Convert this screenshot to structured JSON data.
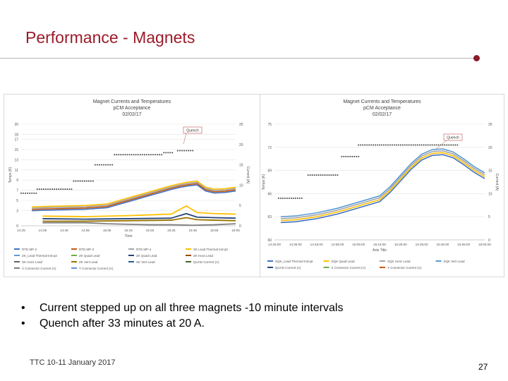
{
  "slide": {
    "title": "Performance - Magnets",
    "bullets": [
      "Current stepped up on all three magnets -10 minute intervals",
      "Quench after 33 minutes at 20 A."
    ],
    "footer": "TTC 10-11 January 2017",
    "page_number": "27",
    "colors": {
      "title": "#9b1b2a",
      "accent_dot": "#8b1a2a"
    }
  },
  "chart_data": [
    {
      "type": "line",
      "title": "Magnet Currents and Temperatures",
      "subtitle_lines": [
        "pCM Acceptance",
        "02/02/17"
      ],
      "xlabel": "Time",
      "ylabel": "Temps (K)",
      "y2label": "Current (A)",
      "x_categories": [
        "14:25",
        "14:35",
        "14:45",
        "14:55",
        "15:05",
        "15:15",
        "15:25",
        "15:35",
        "15:45",
        "15:55",
        "16:05"
      ],
      "ylim": [
        0,
        20
      ],
      "y_ticks": [
        0,
        3,
        5,
        7,
        9,
        11,
        13,
        15,
        17,
        18,
        20
      ],
      "y2lim": [
        0,
        25
      ],
      "y2_ticks": [
        0,
        5,
        10,
        15,
        20,
        25
      ],
      "annotation": "Quench",
      "legend": [
        "RTD MP-2",
        "RTD MP-3",
        "RTD MP-4",
        "SK Lead Thermal Intrcpt",
        "ZK_Lead Thermal Intrcpt",
        "ZK Quad Lead",
        "ZK Quad Lead",
        "ZK Hora Lead",
        "SK Horiz Lead",
        "ZK Vert Lead",
        "SK Vert Lead",
        "QUAD Current (A)",
        "X Connector Current (A)",
        "Y Connector Current (A)"
      ],
      "series_colors": [
        "#4472c4",
        "#c55a11",
        "#a5a5a5",
        "#ffc000",
        "#5b9bd5",
        "#70ad47",
        "#264478",
        "#9e480e",
        "#636363",
        "#997300",
        "#255e91",
        "#43682b",
        "#7f7f7f",
        "#698ed0"
      ],
      "current_steps": [
        {
          "x": [
            0,
            0.7
          ],
          "y": 8
        },
        {
          "x": [
            0.75,
            2.4
          ],
          "y": 9
        },
        {
          "x": [
            2.45,
            3.4
          ],
          "y": 11
        },
        {
          "x": [
            3.45,
            4.3
          ],
          "y": 15
        },
        {
          "x": [
            4.35,
            6.6
          ],
          "y": 17.5
        },
        {
          "x": [
            6.65,
            7.1
          ],
          "y": 18
        },
        {
          "x": [
            7.3,
            8.0
          ],
          "y": 18.5
        }
      ],
      "series": [
        {
          "name": "Magnet temp band",
          "x": [
            0.5,
            1,
            2,
            3,
            4,
            4.5,
            5,
            5.5,
            6,
            6.5,
            7,
            7.4,
            7.8,
            8.2,
            8.6,
            9,
            9.5,
            10
          ],
          "y": [
            3.2,
            3.3,
            3.4,
            3.5,
            3.8,
            4.4,
            5.0,
            5.6,
            6.2,
            6.8,
            7.4,
            7.8,
            8.1,
            8.3,
            7.1,
            6.7,
            6.8,
            7.1
          ]
        },
        {
          "name": "Lower band A",
          "x": [
            1,
            3,
            5,
            7,
            7.7,
            8.2,
            9,
            10
          ],
          "y": [
            1.9,
            1.8,
            2.0,
            2.3,
            3.9,
            2.6,
            2.4,
            2.3
          ]
        },
        {
          "name": "Lower band B",
          "x": [
            1,
            3,
            5,
            7,
            7.7,
            8.2,
            9,
            10
          ],
          "y": [
            1.4,
            1.3,
            1.4,
            1.5,
            2.4,
            1.7,
            1.6,
            1.5
          ]
        },
        {
          "name": "Lower band C",
          "x": [
            1,
            3,
            5,
            7,
            7.7,
            8.2,
            9,
            10
          ],
          "y": [
            0.9,
            0.9,
            1.0,
            1.1,
            1.6,
            1.2,
            1.1,
            1.0
          ]
        },
        {
          "name": "Green dip",
          "x": [
            1,
            3,
            4,
            5,
            6,
            7,
            8,
            9,
            10
          ],
          "y": [
            0.6,
            0.6,
            0.4,
            0.3,
            0.2,
            0.2,
            0.1,
            0.2,
            0.4
          ]
        }
      ]
    },
    {
      "type": "line",
      "title": "Magnet Currents and Temperatures",
      "subtitle_lines": [
        "pCM Acceptance",
        "02/02/17"
      ],
      "xlabel": "Axis Title",
      "ylabel": "Temps (K)",
      "y2label": "Current (A)",
      "x_categories": [
        "14:25:00",
        "14:35:00",
        "14:45:00",
        "14:55:00",
        "15:05:00",
        "15:15:00",
        "15:25:00",
        "15:35:00",
        "15:45:00",
        "15:55:00",
        "16:05:00"
      ],
      "ylim": [
        60,
        75
      ],
      "y_ticks": [
        60,
        63,
        66,
        69,
        72,
        75
      ],
      "y2lim": [
        0,
        25
      ],
      "y2_ticks": [
        0,
        5,
        10,
        15,
        20,
        25
      ],
      "annotation": "Quench",
      "legend": [
        "SQK_Lead Thermal Intrcpt",
        "SQK Quad Lead",
        "SQK Horiz Lead",
        "SQK Vert Lead",
        "QUAD Current (A)",
        "X Connector Current (A)",
        "Y Connector Current (A)"
      ],
      "series_colors": [
        "#4472c4",
        "#ffc000",
        "#a5a5a5",
        "#5b9bd5",
        "#264478",
        "#70ad47",
        "#c55a11"
      ],
      "current_steps": [
        {
          "x": [
            0.2,
            1.3
          ],
          "y": 9.0
        },
        {
          "x": [
            1.6,
            3.0
          ],
          "y": 14.0
        },
        {
          "x": [
            3.2,
            4.0
          ],
          "y": 18.0
        },
        {
          "x": [
            4.0,
            8.7
          ],
          "y": 20.5
        }
      ],
      "series": [
        {
          "name": "Magnet temps",
          "x": [
            0.3,
            1,
            2,
            3,
            4,
            5,
            5.5,
            6,
            6.5,
            7,
            7.5,
            8,
            8.5,
            9,
            9.5,
            10
          ],
          "y": [
            62.5,
            62.6,
            63.0,
            63.6,
            64.4,
            65.2,
            66.4,
            67.9,
            69.4,
            70.6,
            71.2,
            71.3,
            70.9,
            70.0,
            69.0,
            68.2
          ]
        }
      ]
    }
  ]
}
